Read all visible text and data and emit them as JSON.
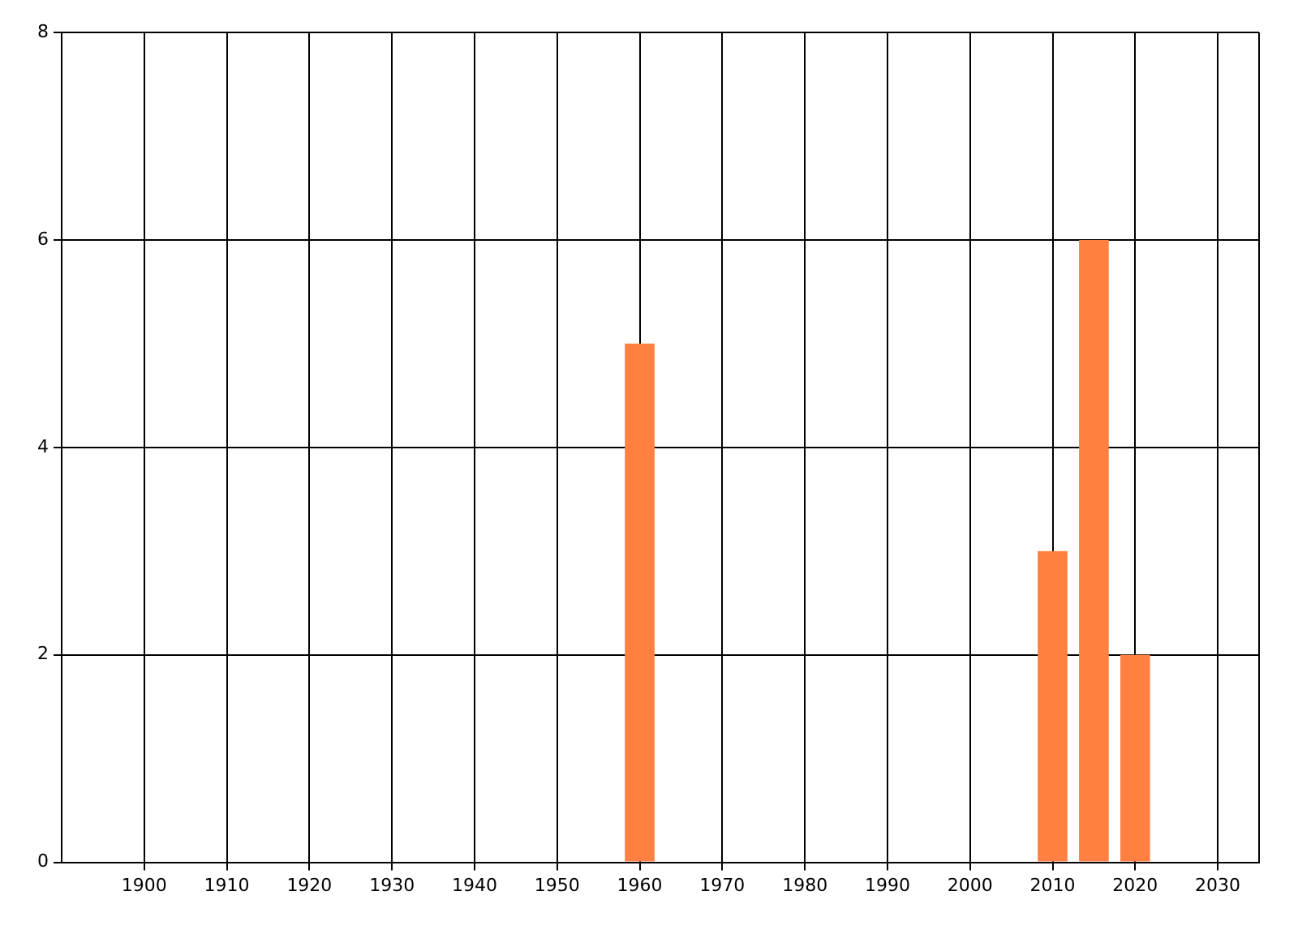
{
  "chart_data": {
    "type": "bar",
    "x": [
      1960,
      2010,
      2015,
      2020
    ],
    "values": [
      5,
      3,
      6,
      2
    ],
    "color": "#ff8040",
    "xlim": [
      1890,
      2035
    ],
    "xticks": [
      1900,
      1910,
      1920,
      1930,
      1940,
      1950,
      1960,
      1970,
      1980,
      1990,
      2000,
      2010,
      2020,
      2030
    ],
    "ylim": [
      0,
      8
    ],
    "yticks": [
      0,
      2,
      4,
      6,
      8
    ],
    "grid": true,
    "legend": false
  }
}
